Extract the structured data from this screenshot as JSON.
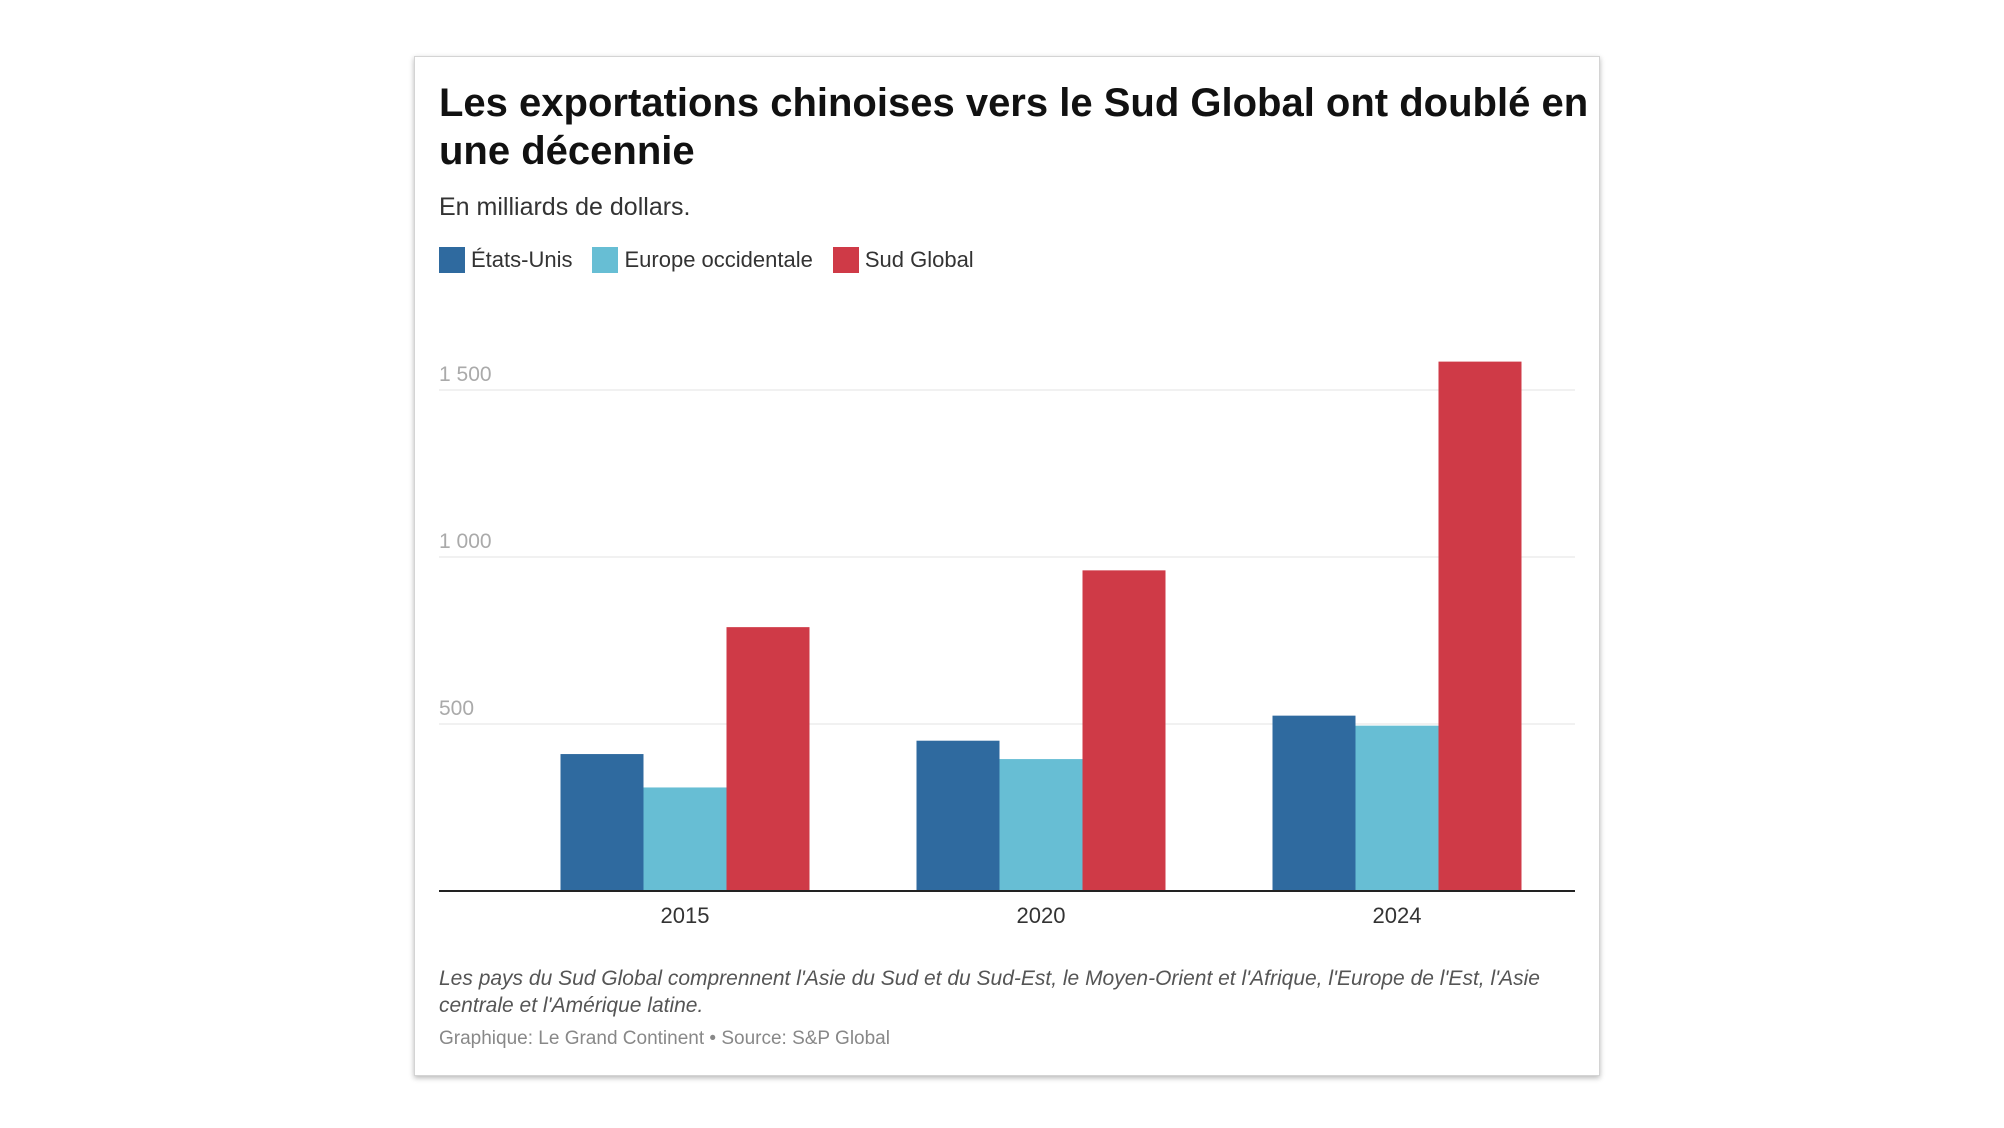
{
  "header": {
    "title": "Les exportations chinoises vers le Sud Global ont doublé en une décennie",
    "subtitle": "En milliards de dollars."
  },
  "legend": [
    {
      "label": "États-Unis",
      "color": "#2f6a9f"
    },
    {
      "label": "Europe occidentale",
      "color": "#67bed4"
    },
    {
      "label": "Sud Global",
      "color": "#cf3a47"
    }
  ],
  "chart_data": {
    "type": "bar",
    "title": "Les exportations chinoises vers le Sud Global ont doublé en une décennie",
    "subtitle": "En milliards de dollars.",
    "categories": [
      "2015",
      "2020",
      "2024"
    ],
    "series": [
      {
        "name": "États-Unis",
        "color": "#2f6a9f",
        "values": [
          410,
          450,
          525
        ]
      },
      {
        "name": "Europe occidentale",
        "color": "#67bed4",
        "values": [
          310,
          395,
          495
        ]
      },
      {
        "name": "Sud Global",
        "color": "#cf3a47",
        "values": [
          790,
          960,
          1585
        ]
      }
    ],
    "y_ticks": [
      {
        "value": 500,
        "label": "500"
      },
      {
        "value": 1000,
        "label": "1 000"
      },
      {
        "value": 1500,
        "label": "1 500"
      }
    ],
    "ylim": [
      0,
      1500
    ],
    "xlabel": "",
    "ylabel": "",
    "grid": true,
    "legend_position": "top-left"
  },
  "footer": {
    "note": "Les pays du Sud Global comprennent l'Asie du Sud et du Sud-Est, le Moyen-Orient et l'Afrique, l'Europe de l'Est, l'Asie centrale et l'Amérique latine.",
    "source": "Graphique: Le Grand Continent • Source: S&P Global"
  }
}
